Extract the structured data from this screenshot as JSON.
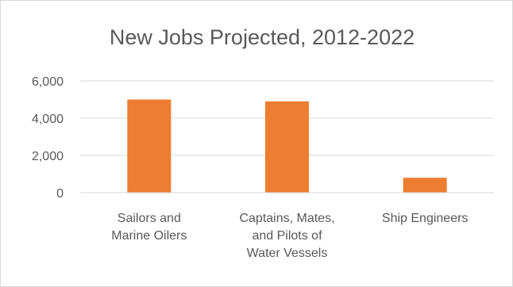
{
  "chart_data": {
    "type": "bar",
    "title": "New Jobs Projected, 2012-2022",
    "xlabel": "",
    "ylabel": "",
    "categories": [
      [
        "Sailors and",
        "Marine Oilers"
      ],
      [
        "Captains, Mates,",
        "and Pilots of",
        "Water Vessels"
      ],
      [
        "Ship Engineers"
      ]
    ],
    "values": [
      5000,
      4900,
      800
    ],
    "ylim": [
      0,
      6000
    ],
    "yticks": [
      0,
      2000,
      4000,
      6000
    ],
    "ytick_labels": [
      "0",
      "2,000",
      "4,000",
      "6,000"
    ],
    "grid": true,
    "legend": "none",
    "colors": {
      "bar": "#ED7D31",
      "grid": "#D9D9D9",
      "text": "#595959",
      "border": "#D9D9D9"
    }
  }
}
